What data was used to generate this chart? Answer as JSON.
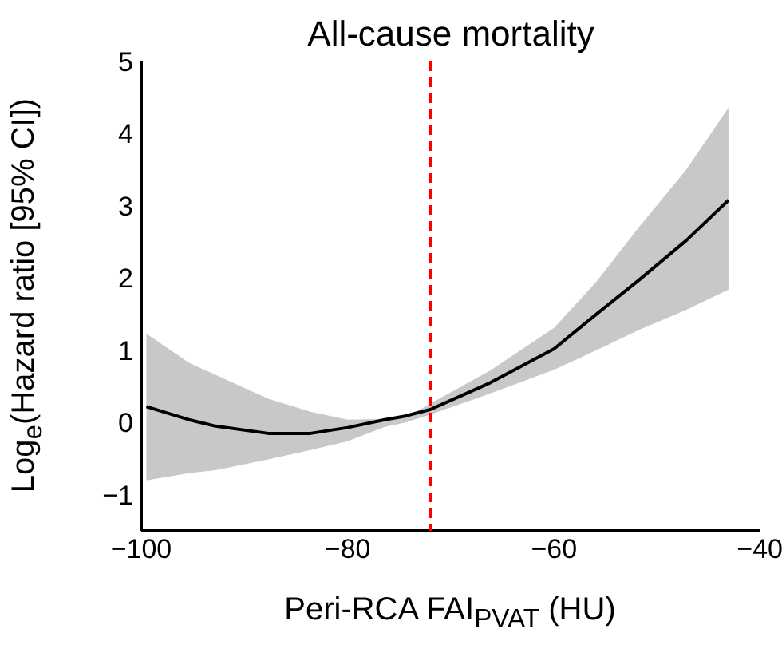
{
  "chart_data": {
    "type": "line",
    "title": "All-cause mortality",
    "xlabel": "Peri-RCA FAI$_{PVAT}$ (HU)",
    "ylabel": "Log$_{e}$(Hazard ratio [95% CI])",
    "x": [
      -99.5,
      -95.4,
      -92.8,
      -87.7,
      -83.6,
      -80,
      -76.4,
      -74.4,
      -72,
      -66.2,
      -60,
      -55.9,
      -51.8,
      -47.2,
      -43.1
    ],
    "series": [
      {
        "color": "#000000",
        "values": [
          0.22,
          0.04,
          -0.05,
          -0.15,
          -0.15,
          -0.07,
          0.04,
          0.09,
          0.18,
          0.55,
          1.02,
          1.5,
          1.97,
          2.52,
          3.08
        ],
        "lower": [
          -0.8,
          -0.7,
          -0.66,
          -0.51,
          -0.38,
          -0.26,
          -0.06,
          0,
          0.11,
          0.4,
          0.73,
          1.0,
          1.28,
          1.56,
          1.84
        ],
        "upper": [
          1.23,
          0.83,
          0.66,
          0.33,
          0.15,
          0.04,
          0.05,
          0.07,
          0.26,
          0.72,
          1.31,
          1.95,
          2.7,
          3.5,
          4.36
        ]
      }
    ],
    "xlim": [
      -100,
      -40
    ],
    "xticks": [
      -100,
      -80,
      -60,
      -40
    ],
    "ylim": [
      -1.5,
      5
    ],
    "yticks": [
      -1,
      0,
      1,
      2,
      3,
      4,
      5
    ],
    "ref_lines": [
      {
        "axis": "x",
        "value": -72,
        "color": "#ff0000",
        "line_style": "dashed"
      }
    ],
    "grid": false,
    "line_style": "solid"
  }
}
